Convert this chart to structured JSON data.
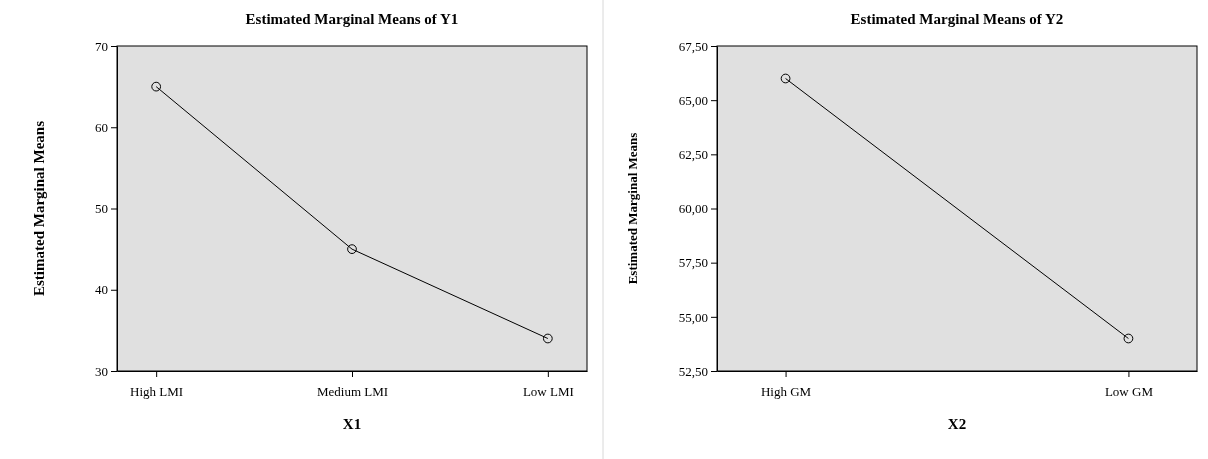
{
  "chart_data": [
    {
      "type": "line",
      "title": "Estimated Marginal Means of Y1",
      "xlabel": "X1",
      "ylabel": "Estimated  Marginal  Means",
      "categories": [
        "High LMI",
        "Medium LMI",
        "Low LMI"
      ],
      "series": [
        {
          "color": "#000000",
          "values": [
            65,
            45,
            34
          ]
        }
      ],
      "ylim": [
        30,
        70
      ],
      "yticks": [
        30,
        40,
        50,
        60,
        70
      ],
      "marker": "circle",
      "line_style": "solid",
      "grid": false
    },
    {
      "type": "line",
      "title": "Estimated Marginal Means of Y2",
      "xlabel": "X2",
      "ylabel": "Estimated Marginal Means",
      "categories": [
        "High GM",
        "Low GM"
      ],
      "series": [
        {
          "color": "#000000",
          "values": [
            66,
            54
          ]
        }
      ],
      "ylim": [
        52.5,
        67.5
      ],
      "yticks": [
        {
          "value": 52.5,
          "label": "52,50"
        },
        {
          "value": 55,
          "label": "55,00"
        },
        {
          "value": 57.5,
          "label": "57,50"
        },
        {
          "value": 60,
          "label": "60,00"
        },
        {
          "value": 62.5,
          "label": "62,50"
        },
        {
          "value": 65,
          "label": "65,00"
        },
        {
          "value": 67.5,
          "label": "67,50"
        }
      ],
      "marker": "circle",
      "line_style": "solid",
      "grid": false
    }
  ]
}
